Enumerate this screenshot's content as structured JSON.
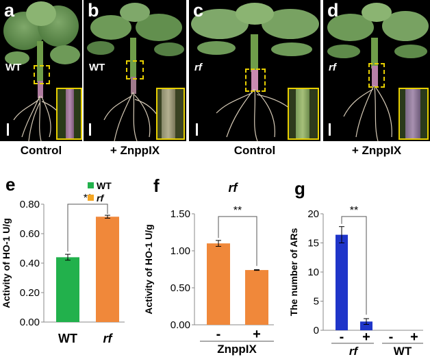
{
  "photos": [
    {
      "letter": "a",
      "genotype": "WT",
      "treatment": "Control"
    },
    {
      "letter": "b",
      "genotype": "WT",
      "treatment": "+ ZnppIX"
    },
    {
      "letter": "c",
      "genotype": "rf",
      "treatment": "Control"
    },
    {
      "letter": "d",
      "genotype": "rf",
      "treatment": "+ ZnppIX"
    }
  ],
  "colors": {
    "wt": "#22b14c",
    "rf": "#f5a623",
    "orange": "#f0883a",
    "blue": "#1f35c9",
    "inset_border": "#e8d000"
  },
  "chart_data": [
    {
      "letter": "e",
      "type": "bar",
      "categories": [
        "WT",
        "rf"
      ],
      "values": [
        0.44,
        0.715
      ],
      "errors": [
        0.02,
        0.01
      ],
      "ylabel": "Activity of HO-1 U/g",
      "ylim": [
        0,
        0.8
      ],
      "yticks": [
        "0.00",
        "0.20",
        "0.40",
        "0.60",
        "0.80"
      ],
      "legend": [
        {
          "name": "WT",
          "color": "#22b14c"
        },
        {
          "name": "rf",
          "color": "#f5a623"
        }
      ],
      "significance": "**",
      "grid": false
    },
    {
      "letter": "f",
      "title": "rf",
      "type": "bar",
      "categories": [
        "-",
        "+"
      ],
      "group_label": "ZnppIX",
      "values": [
        1.1,
        0.74
      ],
      "errors": [
        0.04,
        0.005
      ],
      "ylabel": "Activity of HO-1 U/g",
      "ylim": [
        0,
        1.5
      ],
      "yticks": [
        "0.00",
        "0.50",
        "1.00",
        "1.50"
      ],
      "significance": "**",
      "grid": false
    },
    {
      "letter": "g",
      "type": "bar",
      "categories": [
        "-",
        "+",
        "-",
        "+"
      ],
      "groups": [
        "rf",
        "WT"
      ],
      "values": [
        16.4,
        1.5,
        0,
        0
      ],
      "errors": [
        1.4,
        0.5,
        0,
        0
      ],
      "ylabel": "The number of ARs",
      "ylim": [
        0,
        20
      ],
      "yticks": [
        "0",
        "5",
        "10",
        "15",
        "20"
      ],
      "significance": "**",
      "grid": false
    }
  ]
}
